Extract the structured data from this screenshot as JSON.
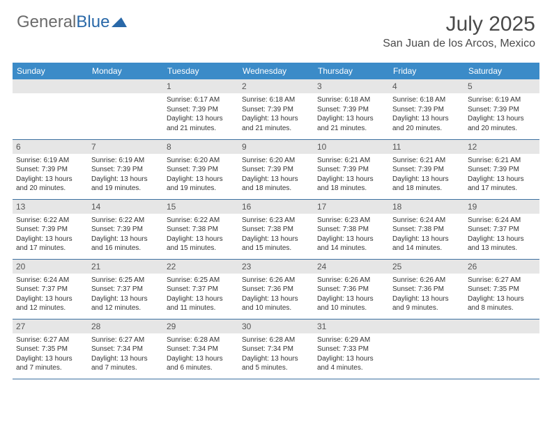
{
  "logo": {
    "general": "General",
    "blue": "Blue"
  },
  "title": "July 2025",
  "location": "San Juan de los Arcos, Mexico",
  "columns": [
    "Sunday",
    "Monday",
    "Tuesday",
    "Wednesday",
    "Thursday",
    "Friday",
    "Saturday"
  ],
  "colors": {
    "header_bg": "#3b8bc8",
    "header_fg": "#ffffff",
    "daynum_bg": "#e6e6e6",
    "row_border": "#3b6fa0",
    "logo_general": "#6b6b6b",
    "logo_blue": "#2968a8",
    "title_color": "#4a4a4a"
  },
  "first_weekday": 2,
  "days": [
    {
      "n": 1,
      "rise": "6:17 AM",
      "set": "7:39 PM",
      "dl": "13 hours and 21 minutes."
    },
    {
      "n": 2,
      "rise": "6:18 AM",
      "set": "7:39 PM",
      "dl": "13 hours and 21 minutes."
    },
    {
      "n": 3,
      "rise": "6:18 AM",
      "set": "7:39 PM",
      "dl": "13 hours and 21 minutes."
    },
    {
      "n": 4,
      "rise": "6:18 AM",
      "set": "7:39 PM",
      "dl": "13 hours and 20 minutes."
    },
    {
      "n": 5,
      "rise": "6:19 AM",
      "set": "7:39 PM",
      "dl": "13 hours and 20 minutes."
    },
    {
      "n": 6,
      "rise": "6:19 AM",
      "set": "7:39 PM",
      "dl": "13 hours and 20 minutes."
    },
    {
      "n": 7,
      "rise": "6:19 AM",
      "set": "7:39 PM",
      "dl": "13 hours and 19 minutes."
    },
    {
      "n": 8,
      "rise": "6:20 AM",
      "set": "7:39 PM",
      "dl": "13 hours and 19 minutes."
    },
    {
      "n": 9,
      "rise": "6:20 AM",
      "set": "7:39 PM",
      "dl": "13 hours and 18 minutes."
    },
    {
      "n": 10,
      "rise": "6:21 AM",
      "set": "7:39 PM",
      "dl": "13 hours and 18 minutes."
    },
    {
      "n": 11,
      "rise": "6:21 AM",
      "set": "7:39 PM",
      "dl": "13 hours and 18 minutes."
    },
    {
      "n": 12,
      "rise": "6:21 AM",
      "set": "7:39 PM",
      "dl": "13 hours and 17 minutes."
    },
    {
      "n": 13,
      "rise": "6:22 AM",
      "set": "7:39 PM",
      "dl": "13 hours and 17 minutes."
    },
    {
      "n": 14,
      "rise": "6:22 AM",
      "set": "7:39 PM",
      "dl": "13 hours and 16 minutes."
    },
    {
      "n": 15,
      "rise": "6:22 AM",
      "set": "7:38 PM",
      "dl": "13 hours and 15 minutes."
    },
    {
      "n": 16,
      "rise": "6:23 AM",
      "set": "7:38 PM",
      "dl": "13 hours and 15 minutes."
    },
    {
      "n": 17,
      "rise": "6:23 AM",
      "set": "7:38 PM",
      "dl": "13 hours and 14 minutes."
    },
    {
      "n": 18,
      "rise": "6:24 AM",
      "set": "7:38 PM",
      "dl": "13 hours and 14 minutes."
    },
    {
      "n": 19,
      "rise": "6:24 AM",
      "set": "7:37 PM",
      "dl": "13 hours and 13 minutes."
    },
    {
      "n": 20,
      "rise": "6:24 AM",
      "set": "7:37 PM",
      "dl": "13 hours and 12 minutes."
    },
    {
      "n": 21,
      "rise": "6:25 AM",
      "set": "7:37 PM",
      "dl": "13 hours and 12 minutes."
    },
    {
      "n": 22,
      "rise": "6:25 AM",
      "set": "7:37 PM",
      "dl": "13 hours and 11 minutes."
    },
    {
      "n": 23,
      "rise": "6:26 AM",
      "set": "7:36 PM",
      "dl": "13 hours and 10 minutes."
    },
    {
      "n": 24,
      "rise": "6:26 AM",
      "set": "7:36 PM",
      "dl": "13 hours and 10 minutes."
    },
    {
      "n": 25,
      "rise": "6:26 AM",
      "set": "7:36 PM",
      "dl": "13 hours and 9 minutes."
    },
    {
      "n": 26,
      "rise": "6:27 AM",
      "set": "7:35 PM",
      "dl": "13 hours and 8 minutes."
    },
    {
      "n": 27,
      "rise": "6:27 AM",
      "set": "7:35 PM",
      "dl": "13 hours and 7 minutes."
    },
    {
      "n": 28,
      "rise": "6:27 AM",
      "set": "7:34 PM",
      "dl": "13 hours and 7 minutes."
    },
    {
      "n": 29,
      "rise": "6:28 AM",
      "set": "7:34 PM",
      "dl": "13 hours and 6 minutes."
    },
    {
      "n": 30,
      "rise": "6:28 AM",
      "set": "7:34 PM",
      "dl": "13 hours and 5 minutes."
    },
    {
      "n": 31,
      "rise": "6:29 AM",
      "set": "7:33 PM",
      "dl": "13 hours and 4 minutes."
    }
  ],
  "labels": {
    "sunrise": "Sunrise:",
    "sunset": "Sunset:",
    "daylight": "Daylight:"
  }
}
